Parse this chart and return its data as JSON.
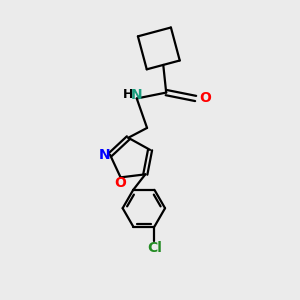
{
  "background_color": "#ebebeb",
  "bond_color": "#000000",
  "line_width": 1.6,
  "font_size_atoms": 9.5,
  "figsize": [
    3.0,
    3.0
  ],
  "dpi": 100,
  "xlim": [
    0,
    10
  ],
  "ylim": [
    0,
    10
  ]
}
